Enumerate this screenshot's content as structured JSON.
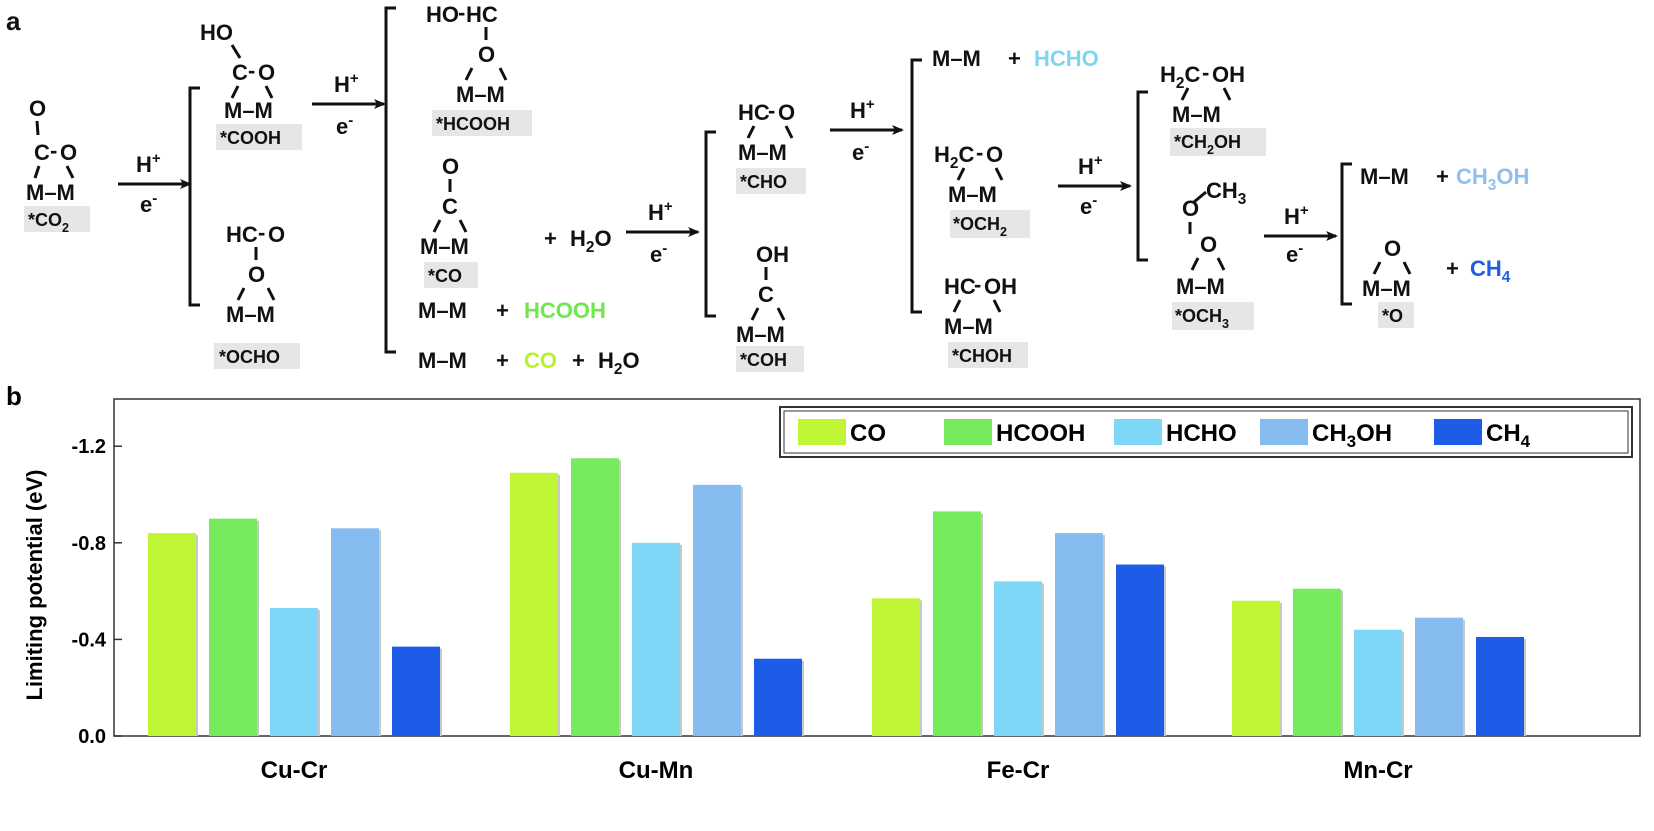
{
  "panel_a": {
    "label": "a",
    "arrow_top": "H+",
    "arrow_bottom": "e-",
    "species": {
      "co2": "*CO2",
      "cooh": "*COOH",
      "ocho": "*OCHO",
      "hcooh": "*HCOOH",
      "co": "*CO",
      "cho": "*CHO",
      "coh": "*COH",
      "och2": "*OCH2",
      "choh": "*CHOH",
      "ch2oh": "*CH2OH",
      "och3": "*OCH3",
      "o": "*O"
    },
    "atoms": {
      "mm": "M–M",
      "m": "M",
      "o": "O",
      "c": "C",
      "ho": "HO",
      "hc": "HC",
      "h2c": "H2C",
      "oh": "OH",
      "ch3": "CH3",
      "h2o": "H2O",
      "hcooh": "HCOOH",
      "co": "CO",
      "hcho": "HCHO",
      "ch3oh": "CH3OH",
      "ch4": "CH4",
      "plus": "+",
      "dash": "-"
    },
    "product_colors": {
      "HCOOH": "#6fe84c",
      "CO": "#b7f22e",
      "HCHO": "#7fd4f2",
      "CH3OH": "#8fbff0",
      "CH4": "#1e5fe0"
    }
  },
  "chart_data": {
    "type": "bar",
    "panel_label": "b",
    "categories": [
      "Cu-Cr",
      "Cu-Mn",
      "Fe-Cr",
      "Mn-Cr"
    ],
    "series": [
      {
        "name": "CO",
        "color": "#bff534",
        "values": [
          -0.84,
          -1.09,
          -0.57,
          -0.56
        ]
      },
      {
        "name": "HCOOH",
        "color": "#77ea5e",
        "values": [
          -0.9,
          -1.15,
          -0.93,
          -0.61
        ]
      },
      {
        "name": "HCHO",
        "color": "#7fd7f7",
        "values": [
          -0.53,
          -0.8,
          -0.64,
          -0.44
        ]
      },
      {
        "name": "CH3OH",
        "color": "#86bcf0",
        "values": [
          -0.86,
          -1.04,
          -0.84,
          -0.49
        ]
      },
      {
        "name": "CH4",
        "color": "#1d5ce6",
        "values": [
          -0.37,
          -0.32,
          -0.71,
          -0.41
        ]
      }
    ],
    "ylabel": "Limiting potential (eV)",
    "yticks": [
      "-1.2",
      "-0.8",
      "-0.4",
      "0.0"
    ],
    "ytick_values": [
      -1.2,
      -0.8,
      -0.4,
      0.0
    ],
    "ylim": [
      0.0,
      -1.4
    ],
    "inverted_y": true,
    "grid": false,
    "legend_position": "top-right"
  }
}
